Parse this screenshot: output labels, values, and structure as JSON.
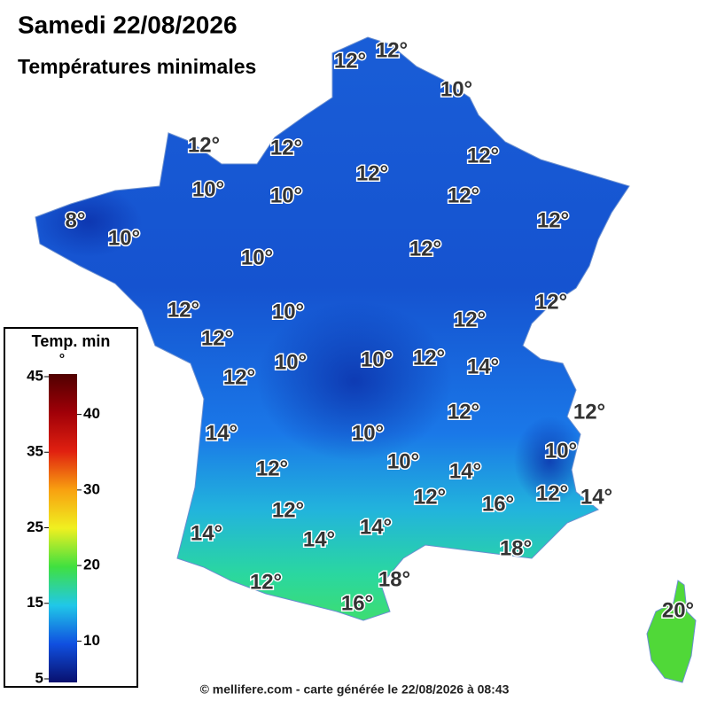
{
  "header": {
    "date": "Samedi 22/08/2026",
    "title": "Températures minimales"
  },
  "map": {
    "labels": [
      "12°",
      "12°",
      "10°",
      "12°",
      "12°",
      "12°",
      "12°",
      "10°",
      "10°",
      "12°",
      "8°",
      "12°",
      "10°",
      "12°",
      "10°",
      "12°",
      "10°",
      "12°",
      "12°",
      "12°",
      "10°",
      "10°",
      "12°",
      "14°",
      "12°",
      "12°",
      "12°",
      "14°",
      "10°",
      "10°",
      "10°",
      "12°",
      "14°",
      "12°",
      "16°",
      "12°",
      "14°",
      "12°",
      "14°",
      "14°",
      "14°",
      "18°",
      "18°",
      "12°",
      "16°",
      "20°"
    ]
  },
  "legend": {
    "title": "Temp. min",
    "unit": "°",
    "ticks": [
      5,
      10,
      15,
      20,
      25,
      30,
      35,
      40,
      45
    ]
  },
  "footer": "© mellifere.com - carte générée le 22/08/2026 à 08:43"
}
